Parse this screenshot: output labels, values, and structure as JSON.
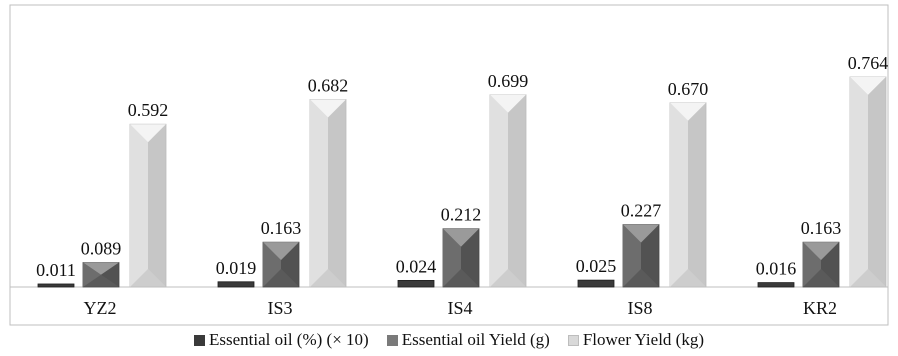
{
  "chart_data": {
    "type": "bar",
    "categories": [
      "YZ2",
      "IS3",
      "IS4",
      "IS8",
      "KR2"
    ],
    "series": [
      {
        "name": "Essential oil (%) (× 10)",
        "values": [
          0.011,
          0.019,
          0.024,
          0.025,
          0.016
        ],
        "color": "#3a3a3a"
      },
      {
        "name": "Essential oil Yield (g)",
        "values": [
          0.089,
          0.163,
          0.212,
          0.227,
          0.163
        ],
        "color": "#6b6b6b"
      },
      {
        "name": "Flower Yield (kg)",
        "values": [
          0.592,
          0.682,
          0.699,
          0.67,
          0.764
        ],
        "color": "#d9d9d9"
      }
    ],
    "value_labels": [
      [
        "0.011",
        "0.019",
        "0.024",
        "0.025",
        "0.016"
      ],
      [
        "0.089",
        "0.163",
        "0.212",
        "0.227",
        "0.163"
      ],
      [
        "0.592",
        "0.682",
        "0.699",
        "0.670",
        "0.764"
      ]
    ],
    "ylim": [
      0,
      0.8
    ],
    "grid": false,
    "legend_position": "bottom"
  }
}
